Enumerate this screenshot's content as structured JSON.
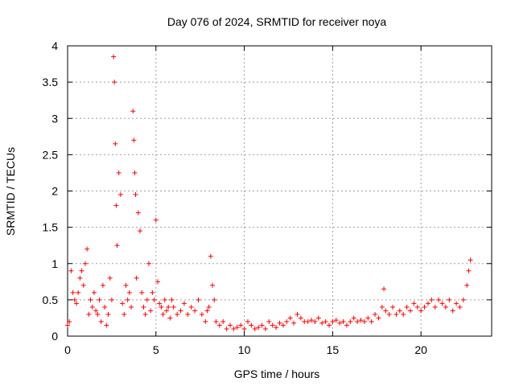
{
  "chart_data": {
    "type": "scatter",
    "title": "Day 076 of 2024, SRMTID for receiver noya",
    "xlabel": "GPS time / hours",
    "ylabel": "SRMTID / TECUs",
    "xlim": [
      0,
      24
    ],
    "ylim": [
      0,
      4
    ],
    "xticks": [
      0,
      5,
      10,
      15,
      20
    ],
    "xtick_labels": [
      "0",
      "5",
      "10",
      "15",
      "20"
    ],
    "yticks": [
      0,
      0.5,
      1,
      1.5,
      2,
      2.5,
      3,
      3.5,
      4
    ],
    "ytick_labels": [
      "0",
      "0.5",
      "1",
      "1.5",
      "2",
      "2.5",
      "3",
      "3.5",
      "4"
    ],
    "grid": true,
    "marker": "+",
    "color": "#ff0000",
    "series": [
      {
        "name": "SRMTID",
        "x": [
          0.0,
          0.1,
          0.2,
          0.3,
          0.4,
          0.5,
          0.6,
          0.7,
          0.8,
          0.9,
          1.0,
          1.1,
          1.2,
          1.3,
          1.4,
          1.5,
          1.6,
          1.7,
          1.8,
          1.9,
          2.0,
          2.1,
          2.2,
          2.3,
          2.4,
          2.5,
          2.6,
          2.65,
          2.7,
          2.75,
          2.8,
          2.9,
          3.0,
          3.1,
          3.2,
          3.3,
          3.4,
          3.5,
          3.6,
          3.7,
          3.75,
          3.8,
          3.85,
          3.9,
          4.0,
          4.1,
          4.2,
          4.3,
          4.4,
          4.5,
          4.6,
          4.7,
          4.8,
          4.9,
          5.0,
          5.1,
          5.2,
          5.3,
          5.4,
          5.5,
          5.6,
          5.7,
          5.8,
          5.9,
          6.0,
          6.2,
          6.4,
          6.6,
          6.8,
          7.0,
          7.2,
          7.4,
          7.6,
          7.8,
          7.9,
          8.0,
          8.1,
          8.2,
          8.3,
          8.4,
          8.6,
          8.8,
          9.0,
          9.2,
          9.4,
          9.6,
          9.8,
          10.0,
          10.2,
          10.4,
          10.6,
          10.8,
          11.0,
          11.2,
          11.4,
          11.6,
          11.8,
          12.0,
          12.2,
          12.4,
          12.6,
          12.8,
          13.0,
          13.2,
          13.4,
          13.6,
          13.8,
          14.0,
          14.2,
          14.4,
          14.6,
          14.8,
          15.0,
          15.2,
          15.4,
          15.6,
          15.8,
          16.0,
          16.2,
          16.4,
          16.6,
          16.8,
          17.0,
          17.2,
          17.4,
          17.6,
          17.8,
          17.9,
          18.0,
          18.2,
          18.4,
          18.6,
          18.8,
          19.0,
          19.2,
          19.4,
          19.6,
          19.8,
          20.0,
          20.2,
          20.4,
          20.6,
          20.8,
          21.0,
          21.2,
          21.4,
          21.6,
          21.8,
          22.0,
          22.2,
          22.4,
          22.6,
          22.7,
          22.8
        ],
        "y": [
          0.15,
          0.2,
          0.9,
          0.6,
          0.5,
          0.45,
          0.6,
          0.8,
          0.9,
          0.7,
          1.0,
          1.2,
          0.3,
          0.5,
          0.4,
          0.6,
          0.35,
          0.3,
          0.5,
          0.2,
          0.7,
          0.4,
          0.15,
          0.3,
          0.8,
          0.5,
          3.85,
          3.5,
          2.65,
          1.8,
          1.25,
          2.25,
          1.95,
          0.45,
          0.3,
          0.7,
          0.5,
          0.6,
          0.4,
          3.1,
          2.7,
          2.25,
          1.95,
          0.8,
          1.7,
          1.45,
          0.6,
          0.4,
          0.3,
          0.5,
          1.0,
          0.35,
          0.6,
          0.5,
          1.6,
          0.75,
          0.45,
          0.4,
          0.3,
          0.5,
          0.35,
          0.4,
          0.25,
          0.5,
          0.4,
          0.3,
          0.35,
          0.45,
          0.3,
          0.4,
          0.35,
          0.5,
          0.3,
          0.2,
          0.35,
          0.4,
          1.1,
          0.7,
          0.5,
          0.2,
          0.15,
          0.2,
          0.1,
          0.15,
          0.1,
          0.12,
          0.15,
          0.1,
          0.2,
          0.15,
          0.1,
          0.12,
          0.15,
          0.1,
          0.2,
          0.15,
          0.12,
          0.18,
          0.15,
          0.2,
          0.25,
          0.18,
          0.3,
          0.25,
          0.2,
          0.2,
          0.22,
          0.2,
          0.25,
          0.18,
          0.2,
          0.15,
          0.2,
          0.22,
          0.18,
          0.2,
          0.15,
          0.2,
          0.25,
          0.2,
          0.22,
          0.2,
          0.25,
          0.2,
          0.3,
          0.25,
          0.4,
          0.65,
          0.35,
          0.3,
          0.4,
          0.3,
          0.35,
          0.3,
          0.4,
          0.35,
          0.45,
          0.4,
          0.35,
          0.4,
          0.45,
          0.5,
          0.4,
          0.5,
          0.45,
          0.4,
          0.5,
          0.35,
          0.45,
          0.4,
          0.5,
          0.7,
          0.9,
          1.05
        ]
      }
    ]
  }
}
